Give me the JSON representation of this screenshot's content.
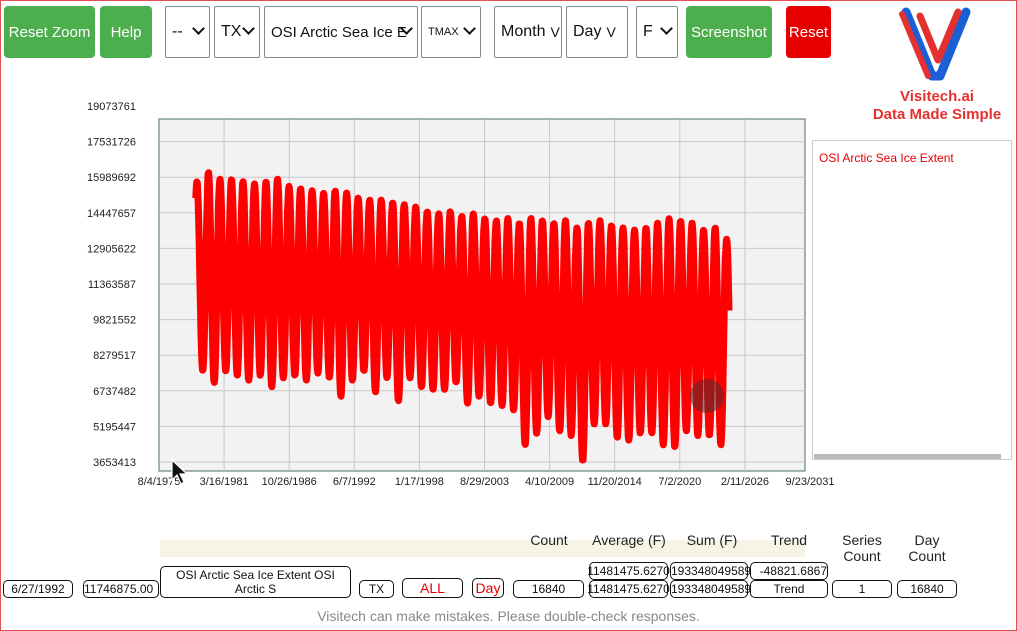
{
  "toolbar": {
    "reset_zoom": "Reset Zoom",
    "help": "Help",
    "select_blank": "--",
    "select_state": "TX",
    "select_dataset": "OSI Arctic Sea Ice E",
    "select_metric": "TMAX",
    "select_month": "Month",
    "select_day": "Day",
    "select_unit": "F",
    "screenshot": "Screenshot",
    "reset": "Reset",
    "v_glyph": "V"
  },
  "logo": {
    "line1": "Visitech.ai",
    "line2": "Data Made Simple"
  },
  "chart_data": {
    "type": "line",
    "y_ticks": [
      "19073761",
      "17531726",
      "15989692",
      "14447657",
      "12905622",
      "11363587",
      "9821552",
      "8279517",
      "6737482",
      "5195447",
      "3653413"
    ],
    "x_ticks": [
      "8/4/1975",
      "3/16/1981",
      "10/26/1986",
      "6/7/1992",
      "1/17/1998",
      "8/29/2003",
      "4/10/2009",
      "11/20/2014",
      "7/2/2020",
      "2/11/2026",
      "9/23/2031"
    ],
    "ylim": [
      3653413,
      19073761
    ],
    "x_year_range": [
      1975.6,
      2031.7
    ],
    "series": [
      {
        "name": "OSI Arctic Sea Ice Extent",
        "color": "#ff0000",
        "start_year": 1978.8,
        "end_year": 2025.1,
        "annual_max": [
          15800000,
          16200000,
          15900000,
          15900000,
          15800000,
          15700000,
          15800000,
          15900000,
          15600000,
          15500000,
          15400000,
          15300000,
          15400000,
          15300000,
          15100000,
          15000000,
          15000000,
          14900000,
          14800000,
          14700000,
          14500000,
          14400000,
          14500000,
          14300000,
          14400000,
          14200000,
          14100000,
          14200000,
          14000000,
          14200000,
          14100000,
          14000000,
          14100000,
          13800000,
          14000000,
          14100000,
          13900000,
          13800000,
          13700000,
          13800000,
          14000000,
          14200000,
          14100000,
          14000000,
          13700000,
          13800000,
          13300000
        ],
        "annual_min": [
          7600000,
          7100000,
          7600000,
          7400000,
          7200000,
          7400000,
          6900000,
          7300000,
          7400000,
          7200000,
          7500000,
          7300000,
          6500000,
          7200000,
          7600000,
          6700000,
          7300000,
          6300000,
          7300000,
          6900000,
          6800000,
          6800000,
          7100000,
          6200000,
          6500000,
          6200000,
          6100000,
          5900000,
          4400000,
          4900000,
          5600000,
          5000000,
          4800000,
          3700000,
          5300000,
          5300000,
          4700000,
          4600000,
          4900000,
          4900000,
          4400000,
          4300000,
          5000000,
          4800000,
          4800000,
          4400000,
          4700000
        ]
      }
    ]
  },
  "legend": {
    "item": "OSI Arctic Sea Ice Extent"
  },
  "stats": {
    "headers": {
      "count": "Count",
      "average": "Average (F)",
      "sum": "Sum (F)",
      "trend": "Trend",
      "series_count": "Series Count",
      "day_count": "Day Count"
    },
    "row_top": {
      "average": "11481475.6270",
      "sum": "193348049589",
      "trend": "-48821.6867"
    },
    "row_main": {
      "date": "6/27/1992",
      "value": "11746875.00",
      "series_name": "OSI Arctic Sea Ice Extent OSI Arctic S",
      "state": "TX",
      "all": "ALL",
      "day": "Day",
      "count": "16840",
      "average": "11481475.6270",
      "sum": "193348049589",
      "trend": "Trend",
      "series_count": "1",
      "day_count": "16840"
    }
  },
  "footer": {
    "disclaimer": "Visitech can make mistakes. Please double-check responses."
  }
}
